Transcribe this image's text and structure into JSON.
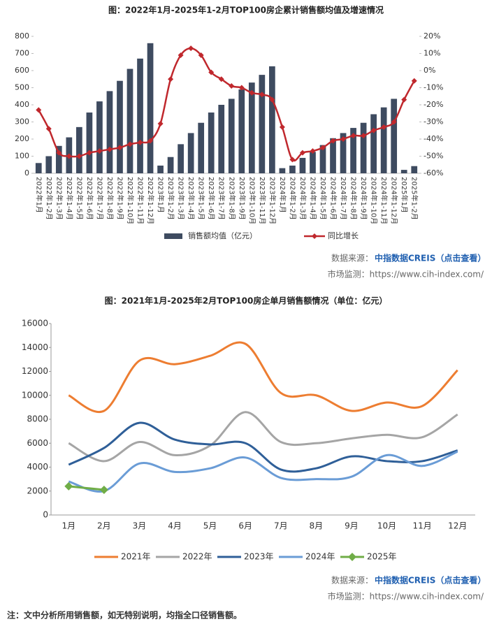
{
  "chart_data": [
    {
      "type": "bar",
      "title": "图：2022年1月-2025年1-2月TOP100房企累计销售额均值及增速情况",
      "categories": [
        "2022年1月",
        "2022年1-2月",
        "2022年1-3月",
        "2022年1-4月",
        "2022年1-5月",
        "2022年1-6月",
        "2022年1-7月",
        "2022年1-8月",
        "2022年1-9月",
        "2022年1-10月",
        "2022年1-11月",
        "2022年1-12月",
        "2023年1月",
        "2023年1-2月",
        "2023年1-3月",
        "2023年1-4月",
        "2023年1-5月",
        "2023年1-6月",
        "2023年1-7月",
        "2023年1-8月",
        "2023年1-9月",
        "2023年1-10月",
        "2023年1-11月",
        "2023年1-12月",
        "2024年1月",
        "2024年1-2月",
        "2024年1-3月",
        "2024年1-4月",
        "2024年1-5月",
        "2024年1-6月",
        "2024年1-7月",
        "2024年1-8月",
        "2024年1-9月",
        "2024年1-10月",
        "2024年1-11月",
        "2024年1-12月",
        "2025年1月",
        "2025年1-2月"
      ],
      "series": [
        {
          "name": "销售额均值（亿元）",
          "type": "bar",
          "color": "#3e4b60",
          "values": [
            60,
            100,
            160,
            210,
            270,
            355,
            420,
            480,
            540,
            610,
            670,
            760,
            45,
            95,
            170,
            235,
            295,
            355,
            400,
            435,
            490,
            530,
            575,
            625,
            30,
            45,
            90,
            125,
            165,
            205,
            235,
            265,
            295,
            345,
            385,
            435,
            20,
            42
          ]
        },
        {
          "name": "同比增长",
          "type": "line",
          "axis": "y2",
          "color": "#c0282d",
          "values": [
            -23,
            -34,
            -48,
            -50,
            -50,
            -48,
            -47,
            -46,
            -45,
            -43,
            -42,
            -41,
            -31,
            -5,
            9,
            13,
            9,
            -1,
            -5,
            -9,
            -10,
            -13,
            -14,
            -17,
            -33,
            -52,
            -48,
            -47,
            -45,
            -41,
            -40,
            -38,
            -38,
            -35,
            -33,
            -30,
            -17,
            -6
          ]
        }
      ],
      "ylim": [
        0,
        800
      ],
      "yticks": [
        0,
        100,
        200,
        300,
        400,
        500,
        600,
        700,
        800
      ],
      "y2lim": [
        -60,
        20
      ],
      "y2ticks": [
        {
          "value": -60,
          "label": "-60%"
        },
        {
          "value": -50,
          "label": "-50%"
        },
        {
          "value": -40,
          "label": "-40%"
        },
        {
          "value": -30,
          "label": "-30%"
        },
        {
          "value": -20,
          "label": "-20%"
        },
        {
          "value": -10,
          "label": "-10%"
        },
        {
          "value": 0,
          "label": "0%"
        },
        {
          "value": 10,
          "label": "10%"
        },
        {
          "value": 20,
          "label": "20%"
        }
      ]
    },
    {
      "type": "line",
      "title": "图：2021年1月-2025年2月TOP100房企单月销售额情况（单位：亿元）",
      "categories": [
        "1月",
        "2月",
        "3月",
        "4月",
        "5月",
        "6月",
        "7月",
        "8月",
        "9月",
        "10月",
        "11月",
        "12月"
      ],
      "series": [
        {
          "name": "2021年",
          "color": "#ed7d31",
          "values": [
            10000,
            8700,
            12900,
            12600,
            13300,
            14300,
            10200,
            10000,
            8700,
            9400,
            9100,
            12100
          ]
        },
        {
          "name": "2022年",
          "color": "#a5a5a5",
          "values": [
            6000,
            4500,
            6100,
            5000,
            5800,
            8600,
            6100,
            6000,
            6400,
            6700,
            6500,
            8400
          ]
        },
        {
          "name": "2023年",
          "color": "#2f5f98",
          "values": [
            4200,
            5600,
            7700,
            6300,
            5900,
            6000,
            3800,
            3900,
            4900,
            4500,
            4500,
            5400
          ]
        },
        {
          "name": "2024年",
          "color": "#6a9cd6",
          "values": [
            2800,
            2000,
            4300,
            3600,
            3900,
            4800,
            3100,
            3000,
            3200,
            5000,
            4100,
            5300
          ]
        },
        {
          "name": "2025年",
          "color": "#70ad47",
          "values": [
            2400,
            2100,
            null,
            null,
            null,
            null,
            null,
            null,
            null,
            null,
            null,
            null
          ]
        }
      ],
      "ylim": [
        0,
        16000
      ],
      "yticks": [
        0,
        2000,
        4000,
        6000,
        8000,
        10000,
        12000,
        14000,
        16000
      ]
    }
  ],
  "sources": [
    {
      "label": "数据来源：",
      "link": "中指数据CREIS（点击查看）",
      "monitor": "市场监测：https://www.cih-index.com/"
    },
    {
      "label": "数据来源：",
      "link": "中指数据CREIS（点击查看）",
      "monitor": "市场监测：https://www.cih-index.com/"
    }
  ],
  "note": "注：文中分析所用销售额，如无特别说明，均指全口径销售额。"
}
